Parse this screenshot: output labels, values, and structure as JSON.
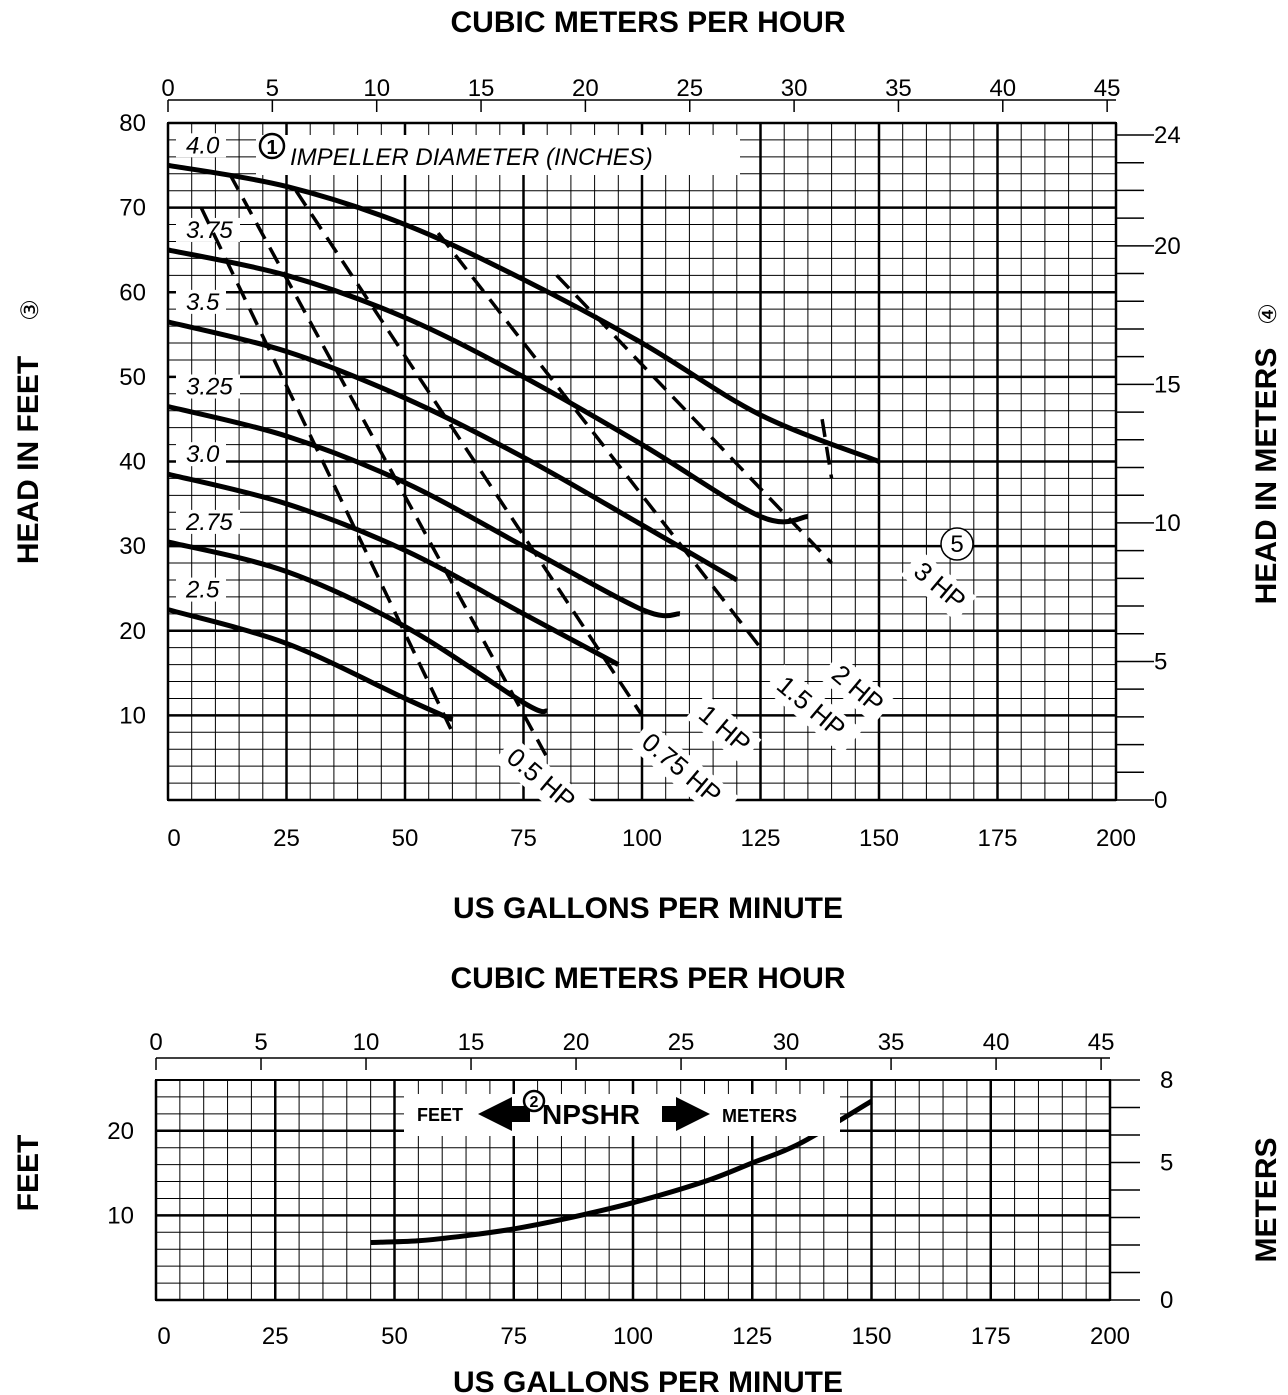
{
  "chart_data": [
    {
      "type": "line",
      "name": "head-capacity",
      "top_axis_title": "CUBIC METERS PER HOUR",
      "bottom_axis_title": "US GALLONS PER MINUTE",
      "left_axis_title": "HEAD IN FEET",
      "left_axis_marker": "③",
      "right_axis_title": "HEAD IN METERS",
      "right_axis_marker": "④",
      "xlim": [
        0,
        200
      ],
      "ylim_feet": [
        0,
        80
      ],
      "ylim_meters": [
        0,
        24
      ],
      "x_top_ticks": [
        "0",
        "5",
        "10",
        "15",
        "20",
        "25",
        "30",
        "35",
        "40",
        "45"
      ],
      "x_bottom_ticks": [
        "0",
        "25",
        "50",
        "75",
        "100",
        "125",
        "150",
        "175",
        "200"
      ],
      "y_left_ticks": [
        "10",
        "20",
        "30",
        "40",
        "50",
        "60",
        "70",
        "80"
      ],
      "y_right_ticks": [
        "0",
        "5",
        "10",
        "15",
        "20",
        "24"
      ],
      "impeller_legend": {
        "marker": "1",
        "text": "IMPELLER DIAMETER (INCHES)"
      },
      "power_marker": "5",
      "series": [
        {
          "name": "4.0",
          "x": [
            0,
            25,
            50,
            75,
            100,
            125,
            150
          ],
          "y": [
            75,
            72.5,
            68,
            61.5,
            54,
            45.5,
            40
          ]
        },
        {
          "name": "3.75",
          "x": [
            0,
            25,
            50,
            75,
            100,
            125,
            135
          ],
          "y": [
            65,
            62,
            57,
            50,
            42,
            33.5,
            33.5
          ]
        },
        {
          "name": "3.5",
          "x": [
            0,
            25,
            50,
            75,
            100,
            120
          ],
          "y": [
            56.5,
            53,
            47.5,
            40.5,
            32.5,
            26
          ]
        },
        {
          "name": "3.25",
          "x": [
            0,
            25,
            50,
            75,
            100,
            108
          ],
          "y": [
            46.5,
            43,
            37.5,
            30,
            22.5,
            22
          ]
        },
        {
          "name": "3.0",
          "x": [
            0,
            25,
            50,
            75,
            95
          ],
          "y": [
            38.5,
            35,
            29.5,
            22,
            16
          ]
        },
        {
          "name": "2.75",
          "x": [
            0,
            25,
            50,
            75,
            80
          ],
          "y": [
            30.5,
            27,
            20.5,
            11.5,
            10.5
          ]
        },
        {
          "name": "2.5",
          "x": [
            0,
            25,
            50,
            60
          ],
          "y": [
            22.5,
            18.5,
            12,
            9.5
          ]
        }
      ],
      "power_lines": [
        {
          "label": "0.5 HP",
          "x": [
            7,
            60
          ],
          "y": [
            70,
            8
          ]
        },
        {
          "label": "0.75 HP",
          "x": [
            13,
            80
          ],
          "y": [
            74,
            5
          ]
        },
        {
          "label": "1 HP",
          "x": [
            27,
            100
          ],
          "y": [
            72,
            10
          ]
        },
        {
          "label": "1.5 HP",
          "x": [
            57,
            125
          ],
          "y": [
            67,
            18
          ]
        },
        {
          "label": "2 HP",
          "x": [
            82,
            140
          ],
          "y": [
            62,
            28
          ]
        },
        {
          "label": "3 HP",
          "x": [
            138,
            140
          ],
          "y": [
            45,
            38
          ]
        }
      ]
    },
    {
      "type": "line",
      "name": "npshr",
      "top_axis_title": "CUBIC METERS PER HOUR",
      "bottom_axis_title": "US GALLONS PER MINUTE",
      "left_axis_title": "FEET",
      "right_axis_title": "METERS",
      "xlim": [
        0,
        200
      ],
      "ylim_feet": [
        0,
        26
      ],
      "ylim_meters": [
        0,
        8
      ],
      "x_top_ticks": [
        "0",
        "5",
        "10",
        "15",
        "20",
        "25",
        "30",
        "35",
        "40",
        "45"
      ],
      "x_bottom_ticks": [
        "0",
        "25",
        "50",
        "75",
        "100",
        "125",
        "150",
        "175",
        "200"
      ],
      "y_left_ticks": [
        "10",
        "20"
      ],
      "y_right_ticks": [
        "0",
        "5",
        "8"
      ],
      "legend": {
        "left": "FEET",
        "marker": "2",
        "center": "NPSHR",
        "right": "METERS"
      },
      "series": [
        {
          "name": "NPSHR",
          "x": [
            45,
            55,
            65,
            75,
            85,
            100,
            115,
            125,
            135,
            150
          ],
          "y": [
            6.8,
            7,
            7.6,
            8.4,
            9.5,
            11.5,
            14,
            16.2,
            18.5,
            23.5
          ]
        }
      ]
    }
  ]
}
